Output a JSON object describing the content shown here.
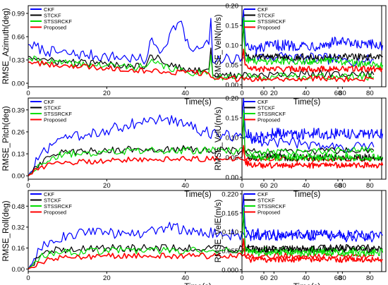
{
  "chart_data": [
    {
      "type": "line",
      "ylabel": "RMSE_Azimuth(deg)",
      "xlabel": "Time(s)",
      "xlim": [
        0,
        90
      ],
      "ylim": [
        -0.05,
        1.1
      ],
      "xticks": [
        0,
        20,
        40,
        60,
        80
      ],
      "yticks": [
        "0.00",
        "0.33",
        "0.66",
        "0.99"
      ],
      "legend": "top-left",
      "series": [
        {
          "name": "CKF",
          "color": "#0000ff",
          "x": [
            0,
            5,
            10,
            15,
            20,
            25,
            28,
            30,
            31,
            32,
            34,
            36,
            38,
            39,
            40,
            42,
            44,
            46,
            46.5,
            47,
            48,
            50,
            55,
            60,
            65,
            70,
            75,
            80,
            85,
            88
          ],
          "y": [
            0.55,
            0.45,
            0.42,
            0.4,
            0.38,
            0.36,
            0.34,
            0.32,
            0.6,
            0.55,
            0.45,
            0.7,
            0.85,
            0.88,
            0.6,
            0.45,
            0.5,
            0.55,
            0.92,
            0.3,
            0.32,
            0.34,
            0.36,
            0.38,
            0.38,
            0.35,
            0.35,
            0.33,
            0.32,
            0.33
          ]
        },
        {
          "name": "STCKF",
          "color": "#000000",
          "x": [
            0,
            5,
            10,
            20,
            30,
            31,
            40,
            46,
            46.5,
            47,
            50,
            60,
            70,
            80,
            88
          ],
          "y": [
            0.38,
            0.32,
            0.3,
            0.27,
            0.25,
            0.4,
            0.18,
            0.2,
            0.5,
            0.12,
            0.11,
            0.11,
            0.14,
            0.13,
            0.12
          ]
        },
        {
          "name": "STSSRCKF",
          "color": "#00dd00",
          "x": [
            0,
            5,
            10,
            20,
            30,
            31,
            40,
            46,
            46.5,
            47,
            50,
            60,
            70,
            80,
            88
          ],
          "y": [
            0.35,
            0.3,
            0.28,
            0.25,
            0.23,
            0.3,
            0.15,
            0.16,
            0.4,
            0.1,
            0.09,
            0.09,
            0.1,
            0.09,
            0.09
          ]
        },
        {
          "name": "Proposed",
          "color": "#ff0000",
          "x": [
            0,
            5,
            10,
            20,
            30,
            40,
            46,
            47,
            50,
            60,
            70,
            80,
            88
          ],
          "y": [
            0.3,
            0.27,
            0.25,
            0.22,
            0.18,
            0.15,
            0.14,
            0.08,
            0.06,
            0.06,
            0.07,
            0.06,
            0.06
          ]
        }
      ]
    },
    {
      "type": "line",
      "ylabel": "RMSE_VelN(m/s)",
      "xlabel": "Time(s)",
      "xlim": [
        0,
        90
      ],
      "ylim": [
        -0.005,
        0.2
      ],
      "xticks": [
        0,
        20,
        40,
        60,
        80
      ],
      "yticks": [
        "0.00",
        "0.05",
        "0.10",
        "0.15",
        "0.20"
      ],
      "legend": "top-left",
      "series": [
        {
          "name": "CKF",
          "color": "#0000ff",
          "x": [
            0,
            1,
            2,
            3,
            5,
            10,
            20,
            30,
            40,
            50,
            60,
            70,
            80,
            88
          ],
          "y": [
            0.14,
            0.19,
            0.12,
            0.1,
            0.09,
            0.09,
            0.1,
            0.1,
            0.1,
            0.1,
            0.11,
            0.1,
            0.1,
            0.1
          ]
        },
        {
          "name": "STCKF",
          "color": "#000000",
          "x": [
            0,
            1,
            2,
            5,
            10,
            20,
            40,
            60,
            80,
            88
          ],
          "y": [
            0.09,
            0.15,
            0.08,
            0.07,
            0.07,
            0.07,
            0.07,
            0.07,
            0.07,
            0.07
          ]
        },
        {
          "name": "STSSRCKF",
          "color": "#00dd00",
          "x": [
            0,
            1,
            2,
            5,
            10,
            20,
            40,
            60,
            80,
            88
          ],
          "y": [
            0.08,
            0.17,
            0.07,
            0.06,
            0.06,
            0.06,
            0.06,
            0.06,
            0.05,
            0.05
          ]
        },
        {
          "name": "Proposed",
          "color": "#ff0000",
          "x": [
            0,
            1,
            2,
            5,
            10,
            20,
            40,
            60,
            80,
            88
          ],
          "y": [
            0.06,
            0.09,
            0.05,
            0.04,
            0.04,
            0.04,
            0.04,
            0.04,
            0.04,
            0.04
          ]
        }
      ]
    },
    {
      "type": "line",
      "ylabel": "RMSE_Pitch(deg)",
      "xlabel": "Time(s)",
      "xlim": [
        0,
        90
      ],
      "ylim": [
        -0.02,
        0.46
      ],
      "xticks": [
        0,
        20,
        40,
        60,
        80
      ],
      "yticks": [
        "0.00",
        "0.13",
        "0.26",
        "0.39"
      ],
      "legend": "top-left",
      "series": [
        {
          "name": "CKF",
          "color": "#0000ff",
          "x": [
            0,
            3,
            6,
            10,
            15,
            20,
            25,
            30,
            35,
            40,
            45,
            50,
            55,
            60,
            65,
            70,
            75,
            80,
            85,
            88
          ],
          "y": [
            0.0,
            0.12,
            0.18,
            0.22,
            0.24,
            0.27,
            0.3,
            0.32,
            0.34,
            0.3,
            0.26,
            0.24,
            0.22,
            0.2,
            0.2,
            0.19,
            0.18,
            0.17,
            0.17,
            0.17
          ]
        },
        {
          "name": "STCKF",
          "color": "#000000",
          "x": [
            0,
            3,
            6,
            10,
            20,
            30,
            40,
            50,
            60,
            70,
            80,
            88
          ],
          "y": [
            0.0,
            0.08,
            0.12,
            0.14,
            0.15,
            0.16,
            0.16,
            0.15,
            0.14,
            0.14,
            0.15,
            0.15
          ]
        },
        {
          "name": "STSSRCKF",
          "color": "#00dd00",
          "x": [
            0,
            3,
            6,
            10,
            20,
            30,
            40,
            50,
            60,
            70,
            80,
            88
          ],
          "y": [
            0.0,
            0.07,
            0.11,
            0.13,
            0.14,
            0.15,
            0.15,
            0.15,
            0.14,
            0.14,
            0.15,
            0.15
          ]
        },
        {
          "name": "Proposed",
          "color": "#ff0000",
          "x": [
            0,
            3,
            6,
            10,
            20,
            30,
            40,
            50,
            60,
            70,
            80,
            88
          ],
          "y": [
            0.0,
            0.05,
            0.07,
            0.08,
            0.09,
            0.1,
            0.1,
            0.1,
            0.1,
            0.1,
            0.1,
            0.1
          ]
        }
      ]
    },
    {
      "type": "line",
      "ylabel": "RMSE_VelU(m/s)",
      "xlabel": "Time(s)",
      "xlim": [
        0,
        90
      ],
      "ylim": [
        -0.005,
        0.2
      ],
      "xticks": [
        0,
        20,
        40,
        60,
        80
      ],
      "yticks": [
        "0.00",
        "0.05",
        "0.10",
        "0.15",
        "0.20"
      ],
      "legend": "top-left",
      "series": [
        {
          "name": "CKF",
          "color": "#0000ff",
          "x": [
            0,
            1,
            2,
            5,
            10,
            20,
            30,
            40,
            50,
            60,
            70,
            80,
            88
          ],
          "y": [
            0.15,
            0.2,
            0.12,
            0.1,
            0.1,
            0.11,
            0.11,
            0.11,
            0.11,
            0.11,
            0.11,
            0.11,
            0.11
          ]
        },
        {
          "name": "STCKF",
          "color": "#000000",
          "x": [
            0,
            1,
            2,
            5,
            10,
            20,
            40,
            60,
            80,
            88
          ],
          "y": [
            0.08,
            0.15,
            0.06,
            0.05,
            0.05,
            0.05,
            0.05,
            0.05,
            0.05,
            0.05
          ]
        },
        {
          "name": "STSSRCKF",
          "color": "#00dd00",
          "x": [
            0,
            1,
            2,
            5,
            10,
            20,
            40,
            60,
            80,
            88
          ],
          "y": [
            0.07,
            0.17,
            0.06,
            0.05,
            0.05,
            0.05,
            0.05,
            0.05,
            0.05,
            0.05
          ]
        },
        {
          "name": "Proposed",
          "color": "#ff0000",
          "x": [
            0,
            1,
            2,
            5,
            10,
            20,
            40,
            60,
            80,
            88
          ],
          "y": [
            0.05,
            0.08,
            0.04,
            0.03,
            0.03,
            0.03,
            0.03,
            0.03,
            0.03,
            0.03
          ]
        }
      ]
    },
    {
      "type": "line",
      "ylabel": "RMSE_Roll(deg)",
      "xlabel": "Time(s)",
      "xlim": [
        0,
        90
      ],
      "ylim": [
        -0.02,
        0.6
      ],
      "xticks": [
        0,
        20,
        40,
        60,
        80
      ],
      "yticks": [
        "0.00",
        "0.16",
        "0.32",
        "0.48"
      ],
      "legend": "top-left",
      "series": [
        {
          "name": "CKF",
          "color": "#0000ff",
          "x": [
            0,
            3,
            6,
            10,
            15,
            20,
            25,
            30,
            35,
            40,
            45,
            50,
            55,
            60,
            65,
            70,
            75,
            80,
            85,
            88
          ],
          "y": [
            0.0,
            0.15,
            0.22,
            0.26,
            0.28,
            0.28,
            0.27,
            0.28,
            0.32,
            0.3,
            0.28,
            0.26,
            0.26,
            0.27,
            0.25,
            0.25,
            0.26,
            0.24,
            0.24,
            0.24
          ]
        },
        {
          "name": "STCKF",
          "color": "#000000",
          "x": [
            0,
            3,
            6,
            10,
            20,
            30,
            40,
            50,
            60,
            70,
            80,
            88
          ],
          "y": [
            0.0,
            0.1,
            0.14,
            0.15,
            0.16,
            0.16,
            0.16,
            0.16,
            0.15,
            0.16,
            0.16,
            0.16
          ]
        },
        {
          "name": "STSSRCKF",
          "color": "#00dd00",
          "x": [
            0,
            3,
            6,
            10,
            20,
            30,
            40,
            50,
            60,
            70,
            80,
            88
          ],
          "y": [
            0.0,
            0.09,
            0.12,
            0.13,
            0.14,
            0.14,
            0.14,
            0.14,
            0.14,
            0.14,
            0.14,
            0.14
          ]
        },
        {
          "name": "Proposed",
          "color": "#ff0000",
          "x": [
            0,
            3,
            6,
            10,
            20,
            30,
            40,
            50,
            60,
            70,
            80,
            88
          ],
          "y": [
            0.0,
            0.05,
            0.08,
            0.09,
            0.1,
            0.1,
            0.1,
            0.1,
            0.1,
            0.1,
            0.1,
            0.1
          ]
        }
      ]
    },
    {
      "type": "line",
      "ylabel": "RMSE_VelE(m/s)",
      "xlabel": "Time(s)",
      "xlim": [
        0,
        90
      ],
      "ylim": [
        -0.005,
        0.23
      ],
      "xticks": [
        0,
        20,
        40,
        60,
        80
      ],
      "yticks": [
        "0.000",
        "0.055",
        "0.110",
        "0.165",
        "0.220"
      ],
      "legend": "top-left",
      "series": [
        {
          "name": "CKF",
          "color": "#0000ff",
          "x": [
            0,
            1,
            2,
            5,
            10,
            20,
            30,
            40,
            50,
            60,
            70,
            80,
            88
          ],
          "y": [
            0.15,
            0.22,
            0.12,
            0.1,
            0.1,
            0.1,
            0.1,
            0.1,
            0.1,
            0.1,
            0.1,
            0.1,
            0.1
          ]
        },
        {
          "name": "STCKF",
          "color": "#000000",
          "x": [
            0,
            1,
            2,
            5,
            10,
            20,
            40,
            60,
            80,
            88
          ],
          "y": [
            0.09,
            0.16,
            0.07,
            0.06,
            0.06,
            0.06,
            0.06,
            0.06,
            0.06,
            0.06
          ]
        },
        {
          "name": "STSSRCKF",
          "color": "#00dd00",
          "x": [
            0,
            1,
            2,
            5,
            10,
            20,
            40,
            60,
            80,
            88
          ],
          "y": [
            0.08,
            0.18,
            0.06,
            0.05,
            0.05,
            0.05,
            0.05,
            0.05,
            0.05,
            0.05
          ]
        },
        {
          "name": "Proposed",
          "color": "#ff0000",
          "x": [
            0,
            1,
            2,
            5,
            10,
            20,
            40,
            60,
            80,
            88
          ],
          "y": [
            0.05,
            0.09,
            0.04,
            0.03,
            0.03,
            0.03,
            0.03,
            0.03,
            0.03,
            0.03
          ]
        }
      ]
    }
  ]
}
